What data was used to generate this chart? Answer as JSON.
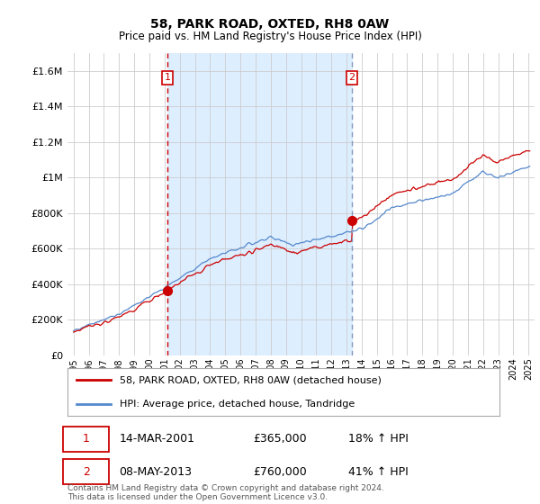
{
  "title": "58, PARK ROAD, OXTED, RH8 0AW",
  "subtitle": "Price paid vs. HM Land Registry's House Price Index (HPI)",
  "ylim": [
    0,
    1700000
  ],
  "yticks": [
    0,
    200000,
    400000,
    600000,
    800000,
    1000000,
    1200000,
    1400000,
    1600000
  ],
  "ytick_labels": [
    "£0",
    "£200K",
    "£400K",
    "£600K",
    "£800K",
    "£1M",
    "£1.2M",
    "£1.4M",
    "£1.6M"
  ],
  "red_color": "#cc0000",
  "blue_color": "#5588cc",
  "vline1_color": "#cc0000",
  "vline2_color": "#8899bb",
  "shade_color": "#ddeeff",
  "background_color": "#ffffff",
  "grid_color": "#cccccc",
  "transaction1": {
    "date": "14-MAR-2001",
    "price": 365000,
    "pct": "18%",
    "label": "1",
    "t": 2001.2
  },
  "transaction2": {
    "date": "08-MAY-2013",
    "price": 760000,
    "pct": "41%",
    "label": "2",
    "t": 2013.35
  },
  "legend_label_red": "58, PARK ROAD, OXTED, RH8 0AW (detached house)",
  "legend_label_blue": "HPI: Average price, detached house, Tandridge",
  "footer": "Contains HM Land Registry data © Crown copyright and database right 2024.\nThis data is licensed under the Open Government Licence v3.0.",
  "x_start_year": 1995,
  "x_end_year": 2025,
  "x_min": 1994.6,
  "x_max": 2025.4,
  "label1_box_color": "#cc0000",
  "label2_box_color": "#cc0000"
}
